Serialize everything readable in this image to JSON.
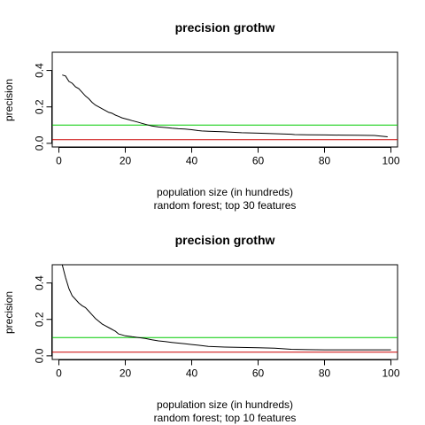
{
  "chart_data": [
    {
      "type": "line",
      "title": "precision grothw",
      "xlabel": "population size (in hundreds)",
      "subtitle": "random forest; top 30 features",
      "ylabel": "precision",
      "xlim": [
        -2,
        102
      ],
      "ylim": [
        -0.02,
        0.5
      ],
      "xticks": [
        0,
        20,
        40,
        60,
        80,
        100
      ],
      "yticks": [
        0.0,
        0.2,
        0.4
      ],
      "ytick_labels": [
        "0.0",
        "0.2",
        "0.4"
      ],
      "hlines": [
        {
          "y": 0.1,
          "color": "#00cc00"
        },
        {
          "y": 0.02,
          "color": "#cc0000"
        }
      ],
      "series": [
        {
          "color": "#000000",
          "x": [
            1,
            2,
            3,
            4,
            5,
            6,
            7,
            8,
            9,
            10,
            11,
            12,
            13,
            14,
            15,
            16,
            17,
            18,
            19,
            20,
            21,
            22,
            23,
            24,
            25,
            26,
            27,
            28,
            30,
            32,
            34,
            36,
            38,
            40,
            42,
            43,
            45,
            50,
            53,
            55,
            60,
            65,
            70,
            71,
            75,
            80,
            85,
            90,
            95,
            98,
            99
          ],
          "y": [
            0.375,
            0.37,
            0.34,
            0.33,
            0.31,
            0.3,
            0.28,
            0.26,
            0.245,
            0.225,
            0.21,
            0.2,
            0.19,
            0.18,
            0.17,
            0.165,
            0.155,
            0.148,
            0.14,
            0.135,
            0.13,
            0.125,
            0.12,
            0.115,
            0.11,
            0.105,
            0.1,
            0.095,
            0.09,
            0.087,
            0.083,
            0.08,
            0.078,
            0.075,
            0.07,
            0.068,
            0.066,
            0.063,
            0.06,
            0.058,
            0.056,
            0.053,
            0.05,
            0.048,
            0.047,
            0.046,
            0.045,
            0.044,
            0.043,
            0.038,
            0.036
          ]
        }
      ]
    },
    {
      "type": "line",
      "title": "precision grothw",
      "xlabel": "population size (in hundreds)",
      "subtitle": "random forest; top 10 features",
      "ylabel": "precision",
      "xlim": [
        -2,
        102
      ],
      "ylim": [
        -0.02,
        0.5
      ],
      "xticks": [
        0,
        20,
        40,
        60,
        80,
        100
      ],
      "yticks": [
        0.0,
        0.2,
        0.4
      ],
      "ytick_labels": [
        "0.0",
        "0.2",
        "0.4"
      ],
      "hlines": [
        {
          "y": 0.1,
          "color": "#00cc00"
        },
        {
          "y": 0.02,
          "color": "#cc0000"
        }
      ],
      "series": [
        {
          "color": "#000000",
          "x": [
            1,
            2,
            3,
            4,
            5,
            6,
            7,
            8,
            9,
            10,
            11,
            12,
            13,
            14,
            15,
            16,
            17,
            18,
            19,
            20,
            21,
            22,
            24,
            26,
            28,
            30,
            32,
            34,
            36,
            38,
            40,
            42,
            45,
            50,
            55,
            60,
            65,
            67,
            70,
            75,
            80,
            85,
            90,
            95,
            100
          ],
          "y": [
            0.5,
            0.43,
            0.37,
            0.33,
            0.31,
            0.29,
            0.275,
            0.265,
            0.245,
            0.225,
            0.205,
            0.19,
            0.175,
            0.165,
            0.155,
            0.145,
            0.135,
            0.12,
            0.115,
            0.11,
            0.108,
            0.105,
            0.1,
            0.095,
            0.088,
            0.082,
            0.078,
            0.074,
            0.07,
            0.066,
            0.062,
            0.058,
            0.052,
            0.048,
            0.046,
            0.044,
            0.042,
            0.04,
            0.036,
            0.034,
            0.033,
            0.033,
            0.033,
            0.033,
            0.033
          ]
        }
      ]
    }
  ]
}
